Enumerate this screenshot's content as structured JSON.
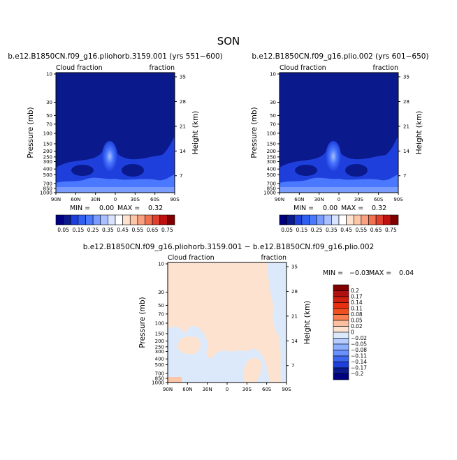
{
  "page_title": "SON",
  "colors": {
    "dark_blue": "#0a1a8c",
    "mid_blue": "#1f3fdc",
    "light_blue": "#4a78ff",
    "pale": "#fde3cf",
    "pale_blue": "#dbe9fb"
  },
  "chart_data": [
    {
      "type": "heatmap",
      "name": "panel-1",
      "title": "b.e12.B1850CN.f09_g16.pliohorb.3159.001 (yrs 551−600)",
      "corner_left": "Cloud fraction",
      "corner_right": "fraction",
      "xlabel": "",
      "ylabel": "Pressure (mb)",
      "y2label": "Height (km)",
      "x_ticks": [
        "90N",
        "60N",
        "30N",
        "0",
        "30S",
        "60S",
        "90S"
      ],
      "y_ticks": [
        "10",
        "30",
        "50",
        "70",
        "100",
        "150",
        "200",
        "250",
        "300",
        "400",
        "500",
        "700",
        "850",
        "1000"
      ],
      "y_ticks_right": [
        "35",
        "28",
        "21",
        "14",
        "7"
      ],
      "min_label": "MIN =",
      "min_value": "0.00",
      "max_label": "MAX =",
      "max_value": "0.32",
      "colorbar_labels": [
        "0.05",
        "0.15",
        "0.25",
        "0.35",
        "0.45",
        "0.55",
        "0.65",
        "0.75"
      ],
      "colorbar_colors": [
        "#000080",
        "#0a1a8c",
        "#1f3fdc",
        "#3060f0",
        "#4a78ff",
        "#7a9cff",
        "#a8c0ff",
        "#d8e4ff",
        "#ffffff",
        "#fde3cf",
        "#fcc6a8",
        "#f8a080",
        "#f07050",
        "#e04030",
        "#c01010",
        "#800000"
      ]
    },
    {
      "type": "heatmap",
      "name": "panel-2",
      "title": "b.e12.B1850CN.f09_g16.plio.002 (yrs 601−650)",
      "corner_left": "Cloud fraction",
      "corner_right": "fraction",
      "xlabel": "",
      "ylabel": "Pressure (mb)",
      "y2label": "Height (km)",
      "x_ticks": [
        "90N",
        "60N",
        "30N",
        "0",
        "30S",
        "60S",
        "90S"
      ],
      "y_ticks": [
        "10",
        "30",
        "50",
        "70",
        "100",
        "150",
        "200",
        "250",
        "300",
        "400",
        "500",
        "700",
        "850",
        "1000"
      ],
      "y_ticks_right": [
        "35",
        "28",
        "21",
        "14",
        "7"
      ],
      "min_label": "MIN =",
      "min_value": "0.00",
      "max_label": "MAX =",
      "max_value": "0.32",
      "colorbar_labels": [
        "0.05",
        "0.15",
        "0.25",
        "0.35",
        "0.45",
        "0.55",
        "0.65",
        "0.75"
      ],
      "colorbar_colors": [
        "#000080",
        "#0a1a8c",
        "#1f3fdc",
        "#3060f0",
        "#4a78ff",
        "#7a9cff",
        "#a8c0ff",
        "#d8e4ff",
        "#ffffff",
        "#fde3cf",
        "#fcc6a8",
        "#f8a080",
        "#f07050",
        "#e04030",
        "#c01010",
        "#800000"
      ]
    },
    {
      "type": "heatmap",
      "name": "panel-diff",
      "title": "b.e12.B1850CN.f09_g16.pliohorb.3159.001 − b.e12.B1850CN.f09_g16.plio.002",
      "corner_left": "Cloud fraction",
      "corner_right": "fraction",
      "xlabel": "",
      "ylabel": "Pressure (mb)",
      "y2label": "Height (km)",
      "x_ticks": [
        "90N",
        "60N",
        "30N",
        "0",
        "30S",
        "60S",
        "90S"
      ],
      "y_ticks": [
        "10",
        "30",
        "50",
        "70",
        "100",
        "150",
        "200",
        "250",
        "300",
        "400",
        "500",
        "700",
        "850",
        "1000"
      ],
      "y_ticks_right": [
        "35",
        "28",
        "21",
        "14",
        "7"
      ],
      "min_label": "MIN =",
      "min_value": "−0.03",
      "max_label": "MAX =",
      "max_value": "0.04",
      "colorbar_labels": [
        "0.2",
        "0.17",
        "0.14",
        "0.11",
        "0.08",
        "0.05",
        "0.02",
        "0",
        "−0.02",
        "−0.05",
        "−0.08",
        "−0.11",
        "−0.14",
        "−0.17",
        "−0.2"
      ],
      "colorbar_colors": [
        "#800000",
        "#b01010",
        "#d02010",
        "#e83010",
        "#f05020",
        "#f88050",
        "#fcc0a0",
        "#fde3cf",
        "#dbe9fb",
        "#b4ccff",
        "#8cb0ff",
        "#6a90ff",
        "#3c66f0",
        "#1f3fdc",
        "#0a1a8c",
        "#000080"
      ]
    }
  ]
}
